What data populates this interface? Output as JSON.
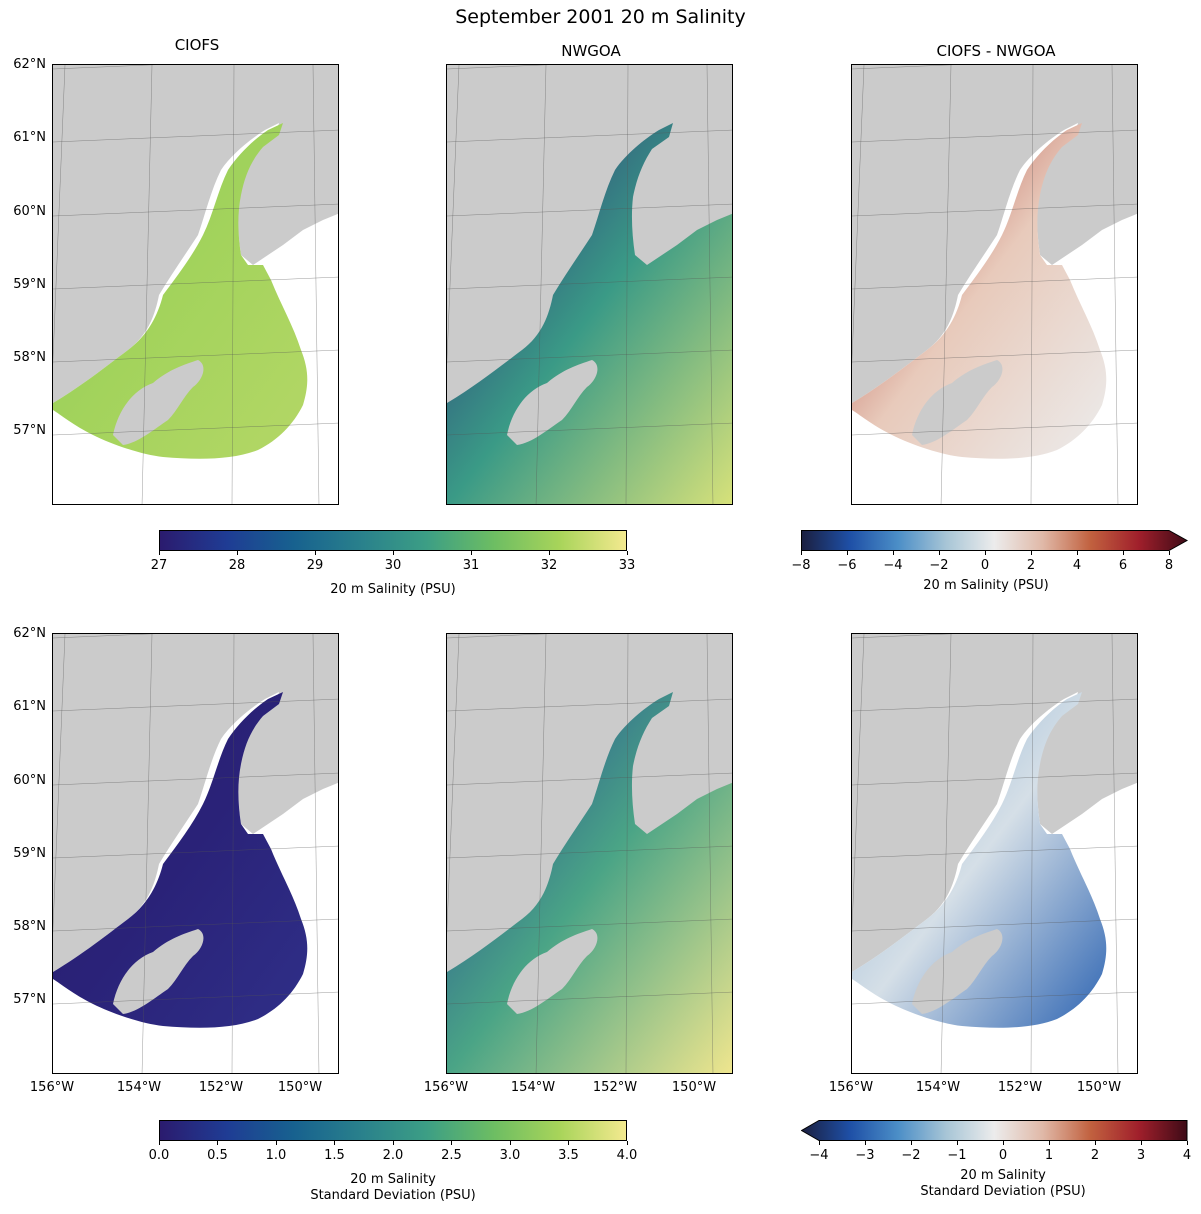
{
  "figure": {
    "title": "September 2001 20 m Salinity",
    "column_titles": [
      "CIOFS",
      "NWGOA",
      "CIOFS - NWGOA"
    ]
  },
  "axes": {
    "lat_labels": [
      "62°N",
      "61°N",
      "60°N",
      "59°N",
      "58°N",
      "57°N"
    ],
    "lon_labels": [
      "156°W",
      "154°W",
      "152°W",
      "150°W"
    ]
  },
  "colorbars": {
    "salinity": {
      "ticks": [
        "27",
        "28",
        "29",
        "30",
        "31",
        "32",
        "33"
      ],
      "label": "20 m Salinity (PSU)",
      "range": [
        27,
        33
      ],
      "colormap": [
        "#2b1b6e",
        "#1f3c94",
        "#17618f",
        "#29808c",
        "#3c9e85",
        "#6cbd63",
        "#a8d45a",
        "#f3e98f"
      ]
    },
    "salinity_diff": {
      "ticks": [
        "−8",
        "−6",
        "−4",
        "−2",
        "0",
        "2",
        "4",
        "6",
        "8"
      ],
      "label": "20 m Salinity (PSU)",
      "range": [
        -8,
        8
      ],
      "extend": "max",
      "colormap": [
        "#1b1f3f",
        "#1e4fa6",
        "#4b8ec7",
        "#a7c5d6",
        "#ececec",
        "#e0b9a8",
        "#c1613f",
        "#a01f2b",
        "#3e0b17"
      ]
    },
    "std": {
      "ticks": [
        "0.0",
        "0.5",
        "1.0",
        "1.5",
        "2.0",
        "2.5",
        "3.0",
        "3.5",
        "4.0"
      ],
      "label_line1": "20 m Salinity",
      "label_line2": "Standard Deviation (PSU)",
      "range": [
        0,
        4
      ],
      "colormap": [
        "#2b1b6e",
        "#1f3c94",
        "#17618f",
        "#29808c",
        "#3c9e85",
        "#6cbd63",
        "#a8d45a",
        "#f3e98f"
      ]
    },
    "std_diff": {
      "ticks": [
        "−4",
        "−3",
        "−2",
        "−1",
        "0",
        "1",
        "2",
        "3",
        "4"
      ],
      "label_line1": "20 m Salinity",
      "label_line2": "Standard Deviation (PSU)",
      "range": [
        -4,
        4
      ],
      "extend": "min",
      "colormap": [
        "#1b1f3f",
        "#1e4fa6",
        "#4b8ec7",
        "#a7c5d6",
        "#ececec",
        "#e0b9a8",
        "#c1613f",
        "#a01f2b",
        "#3e0b17"
      ]
    }
  },
  "panels": [
    {
      "name": "ciofs-mean",
      "fill": [
        "#8ccc5e",
        "#a3d35c",
        "#b4d766"
      ],
      "domain": "ciofs"
    },
    {
      "name": "nwgoa-mean",
      "fill": [
        "#2a1f78",
        "#3a9a86",
        "#d8e27a"
      ],
      "domain": "nwgoa"
    },
    {
      "name": "diff-mean",
      "fill": [
        "#a82b22",
        "#e8cabb",
        "#ececec"
      ],
      "domain": "ciofs"
    },
    {
      "name": "ciofs-std",
      "fill": [
        "#261d6e",
        "#2a2278",
        "#2f2f88"
      ],
      "domain": "ciofs"
    },
    {
      "name": "nwgoa-std",
      "fill": [
        "#1f3a94",
        "#4aa486",
        "#f0e68e"
      ],
      "domain": "nwgoa"
    },
    {
      "name": "diff-std",
      "fill": [
        "#7fa9cf",
        "#d5dfe7",
        "#2d64b2"
      ],
      "domain": "ciofs"
    }
  ]
}
